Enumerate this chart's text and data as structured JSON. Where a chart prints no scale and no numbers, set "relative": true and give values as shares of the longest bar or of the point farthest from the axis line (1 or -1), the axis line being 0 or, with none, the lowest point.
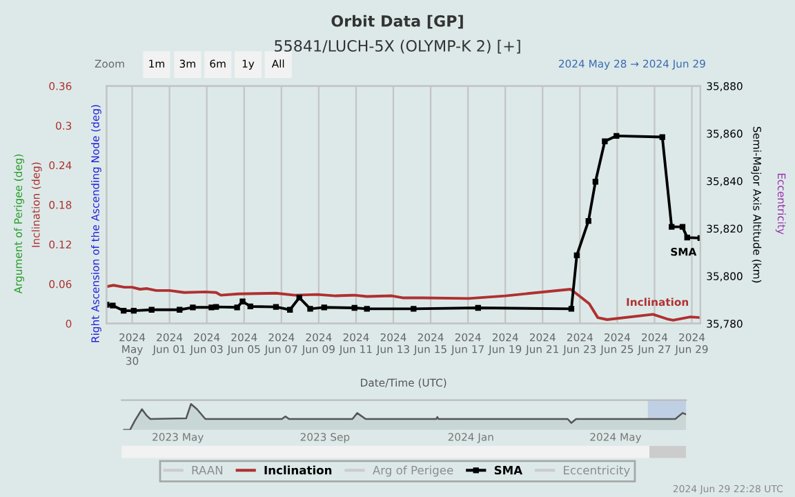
{
  "chart_data": [
    {
      "type": "line",
      "title": "Orbit Data [GP]",
      "subtitle": "55841/LUCH-5X (OLYMP-K 2) [+]",
      "xlabel": "Date/Time (UTC)",
      "ylabel": "Inclination (deg)",
      "y2label": "Semi-Major Axis Altitude (km)",
      "annotations": [
        "Zoom",
        "1m",
        "3m",
        "6m",
        "1y",
        "All",
        "2024 May 28 → 2024 Jun 29",
        "Argument of Perigee (deg)",
        "Right Ascension of the Ascending Node (deg)",
        "Eccentricity",
        "2024 Jun 29 22:28 UTC"
      ],
      "xlim": [
        "2024-05-28T15:00",
        "2024-06-29T11:00"
      ],
      "xticks": [
        {
          "value": "2024-05-30",
          "label": "2024\nMay\n30"
        },
        {
          "value": "2024-06-01",
          "label": "2024\nJun 01"
        },
        {
          "value": "2024-06-03",
          "label": "2024\nJun 03"
        },
        {
          "value": "2024-06-05",
          "label": "2024\nJun 05"
        },
        {
          "value": "2024-06-07",
          "label": "2024\nJun 07"
        },
        {
          "value": "2024-06-09",
          "label": "2024\nJun 09"
        },
        {
          "value": "2024-06-11",
          "label": "2024\nJun 11"
        },
        {
          "value": "2024-06-13",
          "label": "2024\nJun 13"
        },
        {
          "value": "2024-06-15",
          "label": "2024\nJun 15"
        },
        {
          "value": "2024-06-17",
          "label": "2024\nJun 17"
        },
        {
          "value": "2024-06-19",
          "label": "2024\nJun 19"
        },
        {
          "value": "2024-06-21",
          "label": "2024\nJun 21"
        },
        {
          "value": "2024-06-23",
          "label": "2024\nJun 23"
        },
        {
          "value": "2024-06-25",
          "label": "2024\nJun 25"
        },
        {
          "value": "2024-06-27",
          "label": "2024\nJun 27"
        },
        {
          "value": "2024-06-29",
          "label": "2024\nJun 29"
        }
      ],
      "ylim": [
        0,
        0.36
      ],
      "yticks": [
        0,
        0.06,
        0.12,
        0.18,
        0.24,
        0.3,
        0.36
      ],
      "y2lim": [
        35780,
        35880
      ],
      "y2ticks": [
        {
          "value": 35780,
          "label": "35,780"
        },
        {
          "value": 35800,
          "label": "35,800"
        },
        {
          "value": 35820,
          "label": "35,820"
        },
        {
          "value": 35840,
          "label": "35,840"
        },
        {
          "value": 35860,
          "label": "35,860"
        },
        {
          "value": 35880,
          "label": "35,880"
        }
      ],
      "grid": "x",
      "legend": "bottom",
      "series": [
        {
          "name": "RAAN",
          "color": "#cccccc"
        },
        {
          "name": "Inclination",
          "color": "#b03030",
          "marker": "none",
          "x": [
            "2024-05-28T15:00",
            "2024-05-29T00:00",
            "2024-05-29T14:00",
            "2024-05-30T00:00",
            "2024-05-30T10:00",
            "2024-05-30T19:00",
            "2024-05-31T07:00",
            "2024-06-01T00:00",
            "2024-06-01T19:00",
            "2024-06-02T22:00",
            "2024-06-03T12:00",
            "2024-06-03T18:00",
            "2024-06-04T17:00",
            "2024-06-06T17:00",
            "2024-06-07T17:00",
            "2024-06-08T22:00",
            "2024-06-09T22:00",
            "2024-06-10T22:00",
            "2024-06-11T14:00",
            "2024-06-12T22:00",
            "2024-06-13T12:00",
            "2024-06-14T14:00",
            "2024-06-17T01:00",
            "2024-06-19T00:00",
            "2024-06-22T12:00",
            "2024-06-22T23:00",
            "2024-06-23T12:00",
            "2024-06-23T23:00",
            "2024-06-24T11:00",
            "2024-06-26T22:00",
            "2024-06-27T16:00",
            "2024-06-28T00:00",
            "2024-06-28T22:00",
            "2024-06-29T11:00"
          ],
          "values": [
            0.056,
            0.058,
            0.055,
            0.055,
            0.052,
            0.053,
            0.05,
            0.05,
            0.047,
            0.048,
            0.047,
            0.043,
            0.045,
            0.046,
            0.043,
            0.044,
            0.042,
            0.043,
            0.041,
            0.042,
            0.039,
            0.039,
            0.038,
            0.042,
            0.052,
            0.042,
            0.03,
            0.009,
            0.006,
            0.014,
            0.007,
            0.005,
            0.01,
            0.009
          ]
        },
        {
          "name": "Arg of Perigee",
          "color": "#cccccc"
        },
        {
          "name": "SMA",
          "color": "#000000",
          "marker": "square",
          "axis": "y2",
          "x": [
            "2024-05-28T15:00",
            "2024-05-28T23:00",
            "2024-05-29T13:00",
            "2024-05-30T02:00",
            "2024-05-31T01:00",
            "2024-06-01T13:00",
            "2024-06-02T06:00",
            "2024-06-03T06:00",
            "2024-06-03T12:00",
            "2024-06-04T15:00",
            "2024-06-04T22:00",
            "2024-06-05T08:00",
            "2024-06-06T17:00",
            "2024-06-07T11:00",
            "2024-06-07T23:00",
            "2024-06-08T13:00",
            "2024-06-09T07:00",
            "2024-06-10T22:00",
            "2024-06-11T14:00",
            "2024-06-14T02:00",
            "2024-06-17T13:00",
            "2024-06-22T13:00",
            "2024-06-22T20:00",
            "2024-06-23T11:00",
            "2024-06-23T20:00",
            "2024-06-24T08:00",
            "2024-06-24T23:00",
            "2024-06-27T10:00",
            "2024-06-27T22:00",
            "2024-06-28T12:00",
            "2024-06-28T18:00",
            "2024-06-29T11:00"
          ],
          "values": [
            35787.9,
            35787.6,
            35785.4,
            35785.4,
            35785.8,
            35785.8,
            35786.8,
            35786.8,
            35787.0,
            35786.8,
            35789.3,
            35787.2,
            35787.0,
            35785.8,
            35790.9,
            35786.2,
            35786.8,
            35786.6,
            35786.2,
            35786.2,
            35786.6,
            35786.2,
            35808.7,
            35823.2,
            35839.7,
            35856.7,
            35859.0,
            35858.5,
            35820.7,
            35820.7,
            35816.2,
            35816.0
          ]
        },
        {
          "name": "Eccentricity",
          "color": "#cccccc"
        }
      ]
    },
    {
      "type": "area",
      "relative": true,
      "tick_labels": "x",
      "xlim": [
        "2023-03-15",
        "2024-06-29"
      ],
      "xticks": [
        {
          "value": "2023-05-01",
          "label": "2023 May"
        },
        {
          "value": "2023-09-01",
          "label": "2023 Sep"
        },
        {
          "value": "2024-01-01",
          "label": "2024 Jan"
        },
        {
          "value": "2024-05-01",
          "label": "2024 May"
        }
      ],
      "bands": [
        {
          "axis": "x",
          "from": "2024-05-28",
          "to": "2024-06-29",
          "color": "#b8c8e2"
        }
      ],
      "series": [
        {
          "color": "#555555",
          "x": [
            "2023-03-17",
            "2023-03-22",
            "2023-03-26",
            "2023-04-01",
            "2023-04-05",
            "2023-04-08",
            "2023-05-08",
            "2023-05-12",
            "2023-05-17",
            "2023-05-24",
            "2023-07-27",
            "2023-07-30",
            "2023-08-02",
            "2023-09-24",
            "2023-09-28",
            "2023-10-05",
            "2023-12-03",
            "2023-12-04",
            "2023-12-05",
            "2024-03-22",
            "2024-03-25",
            "2024-03-29",
            "2024-06-20",
            "2024-06-26",
            "2024-06-29"
          ],
          "values": [
            0,
            0,
            0.35,
            0.8,
            0.55,
            0.42,
            0.45,
            1.0,
            0.8,
            0.42,
            0.42,
            0.52,
            0.42,
            0.42,
            0.65,
            0.42,
            0.42,
            0.5,
            0.42,
            0.42,
            0.27,
            0.42,
            0.42,
            0.65,
            0.6
          ]
        }
      ]
    }
  ]
}
